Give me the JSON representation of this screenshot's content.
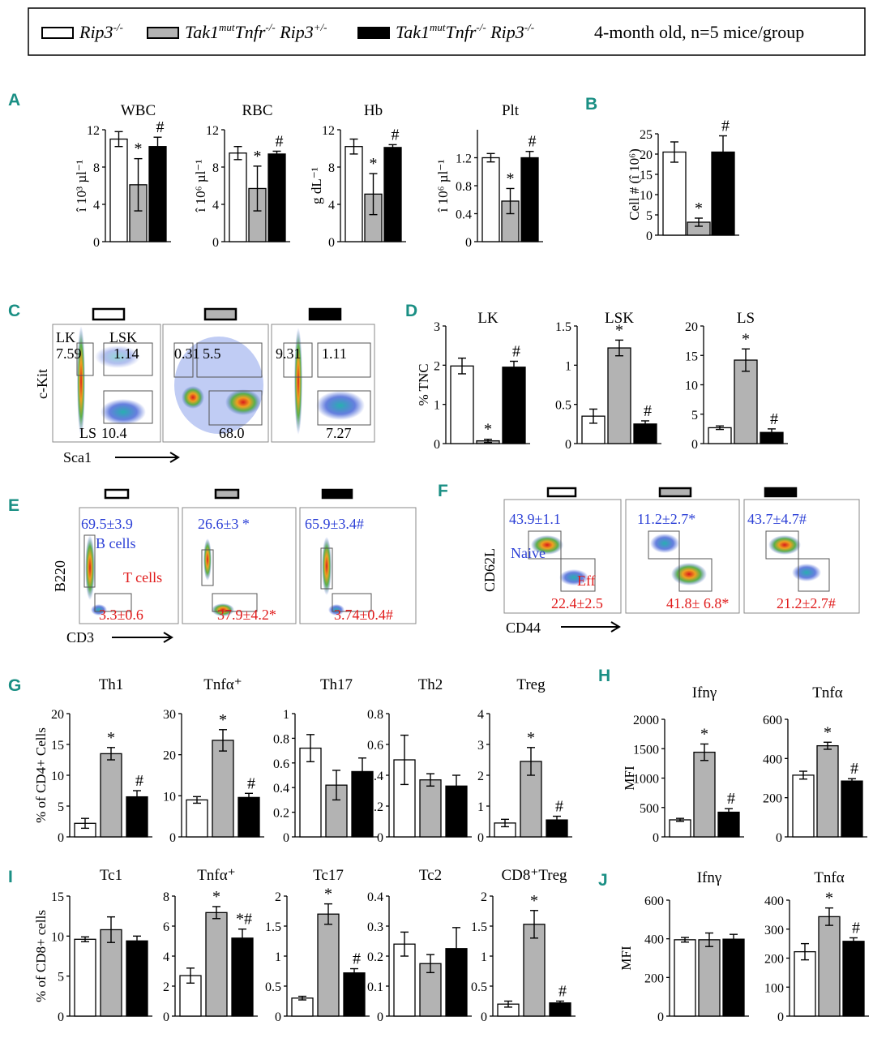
{
  "legend": {
    "groups": [
      {
        "label": "Rip3",
        "sup": "-/-",
        "color": "#ffffff"
      },
      {
        "label": "Tak1",
        "sup": "mut",
        "label2": "Tnfr",
        "sup2": "-/-",
        "label3": " Rip3",
        "sup3": "+/-",
        "color": "#b3b3b3"
      },
      {
        "label": "Tak1",
        "sup": "mut",
        "label2": "Tnfr",
        "sup2": "-/-",
        "label3": " Rip3",
        "sup3": "-/-",
        "color": "#000000"
      }
    ],
    "note": "4-month old, n=5 mice/group"
  },
  "panel_letters": [
    "A",
    "B",
    "C",
    "D",
    "E",
    "F",
    "G",
    "H",
    "I",
    "J"
  ],
  "flow_c": {
    "labels": {
      "lk": "LK",
      "lsk": "LSK",
      "ls": "LS",
      "ylabel": "c-Kit",
      "xlabel": "Sca1"
    },
    "plots": [
      {
        "lk": "7.59",
        "lsk": "1.14",
        "ls": "10.4"
      },
      {
        "lk": "0.31",
        "lsk": "5.5",
        "ls": "68.0"
      },
      {
        "lk": "9.31",
        "lsk": "1.11",
        "ls": "7.27"
      }
    ]
  },
  "flow_e": {
    "ylabel": "B220",
    "xlabel": "CD3",
    "bcells": "B cells",
    "tcells": "T cells",
    "plots": [
      {
        "b": "69.5±3.9",
        "t": "3.3±0.6"
      },
      {
        "b": "26.6±3 *",
        "t": "37.9±4.2*"
      },
      {
        "b": "65.9±3.4#",
        "t": "3.74±0.4#"
      }
    ]
  },
  "flow_f": {
    "ylabel": "CD62L",
    "xlabel": "CD44",
    "naive": "Naive",
    "eff": "Eff",
    "plots": [
      {
        "n": "43.9±1.1",
        "e": "22.4±2.5"
      },
      {
        "n": "11.2±2.7*",
        "e": "41.8± 6.8*"
      },
      {
        "n": "43.7±4.7#",
        "e": "21.2±2.7#"
      }
    ]
  },
  "chart_data": [
    {
      "id": "A-WBC",
      "type": "bar",
      "title": "WBC",
      "ylabel": "î 10³ µl⁻¹",
      "ylim": [
        0,
        12
      ],
      "ticks": [
        "0",
        "4",
        "8",
        "12"
      ],
      "values": [
        11.0,
        6.1,
        10.2
      ],
      "errors": [
        0.8,
        2.8,
        1.0
      ],
      "marks": [
        "",
        "*",
        "#"
      ]
    },
    {
      "id": "A-RBC",
      "type": "bar",
      "title": "RBC",
      "ylabel": "î 10⁶ µl⁻¹",
      "ylim": [
        0,
        12
      ],
      "ticks": [
        "0",
        "4",
        "8",
        "12"
      ],
      "values": [
        9.5,
        5.7,
        9.4
      ],
      "errors": [
        0.7,
        2.4,
        0.3
      ],
      "marks": [
        "",
        "*",
        "#"
      ]
    },
    {
      "id": "A-Hb",
      "type": "bar",
      "title": "Hb",
      "ylabel": "g dL⁻¹",
      "ylim": [
        0,
        12
      ],
      "ticks": [
        "0",
        "4",
        "8",
        "12"
      ],
      "values": [
        10.2,
        5.1,
        10.1
      ],
      "errors": [
        0.8,
        2.2,
        0.3
      ],
      "marks": [
        "",
        "*",
        "#"
      ]
    },
    {
      "id": "A-Plt",
      "type": "bar",
      "title": "Plt",
      "ylabel": "î 10⁶ µl⁻¹",
      "ylim": [
        0,
        1.6
      ],
      "ticks": [
        "0",
        "0.4",
        "0.8",
        "1.2"
      ],
      "values": [
        1.2,
        0.58,
        1.2
      ],
      "errors": [
        0.06,
        0.18,
        0.09
      ],
      "marks": [
        "",
        "*",
        "#"
      ]
    },
    {
      "id": "B",
      "type": "bar",
      "title": "",
      "ylabel": "Cell # (î 10⁶)",
      "ylim": [
        0,
        25
      ],
      "ticks": [
        "0",
        "5",
        "10",
        "15",
        "20",
        "25"
      ],
      "values": [
        20.5,
        3.2,
        20.5
      ],
      "errors": [
        2.5,
        1.0,
        4.0
      ],
      "marks": [
        "",
        "*",
        "#"
      ]
    },
    {
      "id": "D-LK",
      "type": "bar",
      "title": "LK",
      "ylabel": "% TNC",
      "ylim": [
        0,
        3
      ],
      "ticks": [
        "0",
        "1",
        "2",
        "3"
      ],
      "values": [
        1.98,
        0.07,
        1.95
      ],
      "errors": [
        0.2,
        0.04,
        0.15
      ],
      "marks": [
        "",
        "*",
        "#"
      ]
    },
    {
      "id": "D-LSK",
      "type": "bar",
      "title": "LSK",
      "ylabel": "",
      "ylim": [
        0,
        1.5
      ],
      "ticks": [
        "0",
        "0.5",
        "1",
        "1.5"
      ],
      "values": [
        0.35,
        1.22,
        0.25
      ],
      "errors": [
        0.09,
        0.1,
        0.04
      ],
      "marks": [
        "",
        "*",
        "#"
      ]
    },
    {
      "id": "D-LS",
      "type": "bar",
      "title": "LS",
      "ylabel": "",
      "ylim": [
        0,
        20
      ],
      "ticks": [
        "0",
        "5",
        "10",
        "15",
        "20"
      ],
      "values": [
        2.7,
        14.2,
        1.9
      ],
      "errors": [
        0.3,
        1.9,
        0.6
      ],
      "marks": [
        "",
        "*",
        "#"
      ]
    },
    {
      "id": "G-Th1",
      "type": "bar",
      "title": "Th1",
      "ylabel": "% of CD4+ Cells",
      "ylim": [
        0,
        20
      ],
      "ticks": [
        "0",
        "5",
        "10",
        "15",
        "20"
      ],
      "values": [
        2.2,
        13.5,
        6.5
      ],
      "errors": [
        0.8,
        1.0,
        1.0
      ],
      "marks": [
        "",
        "*",
        "#"
      ]
    },
    {
      "id": "G-Tnfa",
      "type": "bar",
      "title": "Tnfα⁺",
      "ylabel": "",
      "ylim": [
        0,
        30
      ],
      "ticks": [
        "0",
        "10",
        "20",
        "30"
      ],
      "values": [
        9.0,
        23.5,
        9.6
      ],
      "errors": [
        0.8,
        2.6,
        1.0
      ],
      "marks": [
        "",
        "*",
        "#"
      ]
    },
    {
      "id": "G-Th17",
      "type": "bar",
      "title": "Th17",
      "ylabel": "",
      "ylim": [
        0,
        1
      ],
      "ticks": [
        "0",
        "0.2",
        "0.4",
        "0.6",
        "0.8",
        "1"
      ],
      "values": [
        0.72,
        0.42,
        0.53
      ],
      "errors": [
        0.11,
        0.12,
        0.11
      ],
      "marks": [
        "",
        "",
        ""
      ]
    },
    {
      "id": "G-Th2",
      "type": "bar",
      "title": "Th2",
      "ylabel": "",
      "ylim": [
        0,
        0.8
      ],
      "ticks": [
        "0",
        "0.2",
        "0.4",
        "0.6",
        "0.8"
      ],
      "values": [
        0.5,
        0.37,
        0.33
      ],
      "errors": [
        0.16,
        0.04,
        0.07
      ],
      "marks": [
        "",
        "",
        ""
      ]
    },
    {
      "id": "G-Treg",
      "type": "bar",
      "title": "Treg",
      "ylabel": "",
      "ylim": [
        0,
        4
      ],
      "ticks": [
        "0",
        "1",
        "2",
        "3",
        "4"
      ],
      "values": [
        0.45,
        2.45,
        0.55
      ],
      "errors": [
        0.12,
        0.45,
        0.12
      ],
      "marks": [
        "",
        "*",
        "#"
      ]
    },
    {
      "id": "H-Ifng",
      "type": "bar",
      "title": "Ifnγ",
      "ylabel": "MFI",
      "ylim": [
        0,
        2000
      ],
      "ticks": [
        "0",
        "500",
        "1000",
        "1500",
        "2000"
      ],
      "values": [
        290,
        1440,
        420
      ],
      "errors": [
        25,
        140,
        60
      ],
      "marks": [
        "",
        "*",
        "#"
      ]
    },
    {
      "id": "H-Tnfa",
      "type": "bar",
      "title": "Tnfα",
      "ylabel": "",
      "ylim": [
        0,
        600
      ],
      "ticks": [
        "0",
        "200",
        "400",
        "600"
      ],
      "values": [
        315,
        465,
        285
      ],
      "errors": [
        20,
        18,
        12
      ],
      "marks": [
        "",
        "*",
        "#"
      ]
    },
    {
      "id": "I-Tc1",
      "type": "bar",
      "title": "Tc1",
      "ylabel": "% of CD8+ cells",
      "ylim": [
        0,
        15
      ],
      "ticks": [
        "0",
        "5",
        "10",
        "15"
      ],
      "values": [
        9.6,
        10.8,
        9.4
      ],
      "errors": [
        0.3,
        1.6,
        0.6
      ],
      "marks": [
        "",
        "",
        ""
      ]
    },
    {
      "id": "I-Tnfa",
      "type": "bar",
      "title": "Tnfα⁺",
      "ylabel": "",
      "ylim": [
        0,
        8
      ],
      "ticks": [
        "0",
        "2",
        "4",
        "6",
        "8"
      ],
      "values": [
        2.7,
        6.9,
        5.2
      ],
      "errors": [
        0.5,
        0.4,
        0.6
      ],
      "marks": [
        "",
        "*",
        "*#"
      ]
    },
    {
      "id": "I-Tc17",
      "type": "bar",
      "title": "Tc17",
      "ylabel": "",
      "ylim": [
        0,
        2
      ],
      "ticks": [
        "0",
        "0.5",
        "1",
        "1.5",
        "2"
      ],
      "values": [
        0.3,
        1.7,
        0.72
      ],
      "errors": [
        0.03,
        0.17,
        0.07
      ],
      "marks": [
        "",
        "*",
        "#"
      ]
    },
    {
      "id": "I-Tc2",
      "type": "bar",
      "title": "Tc2",
      "ylabel": "",
      "ylim": [
        0,
        0.4
      ],
      "ticks": [
        "0",
        "0.1",
        "0.2",
        "0.3",
        "0.4"
      ],
      "values": [
        0.24,
        0.175,
        0.225
      ],
      "errors": [
        0.04,
        0.03,
        0.07
      ],
      "marks": [
        "",
        "",
        ""
      ]
    },
    {
      "id": "I-CD8Treg",
      "type": "bar",
      "title": "CD8⁺Treg",
      "ylabel": "",
      "ylim": [
        0,
        2
      ],
      "ticks": [
        "0",
        "0.5",
        "1",
        "1.5",
        "2"
      ],
      "values": [
        0.2,
        1.53,
        0.22
      ],
      "errors": [
        0.05,
        0.23,
        0.03
      ],
      "marks": [
        "",
        "*",
        "#"
      ]
    },
    {
      "id": "J-Ifng",
      "type": "bar",
      "title": "Ifnγ",
      "ylabel": "MFI",
      "ylim": [
        0,
        600
      ],
      "ticks": [
        "0",
        "200",
        "400",
        "600"
      ],
      "values": [
        395,
        395,
        398
      ],
      "errors": [
        12,
        35,
        25
      ],
      "marks": [
        "",
        "",
        ""
      ]
    },
    {
      "id": "J-Tnfa",
      "type": "bar",
      "title": "Tnfα",
      "ylabel": "",
      "ylim": [
        0,
        400
      ],
      "ticks": [
        "0",
        "100",
        "200",
        "300",
        "400"
      ],
      "values": [
        222,
        343,
        258
      ],
      "errors": [
        28,
        30,
        12
      ],
      "marks": [
        "",
        "*",
        "#"
      ]
    }
  ]
}
